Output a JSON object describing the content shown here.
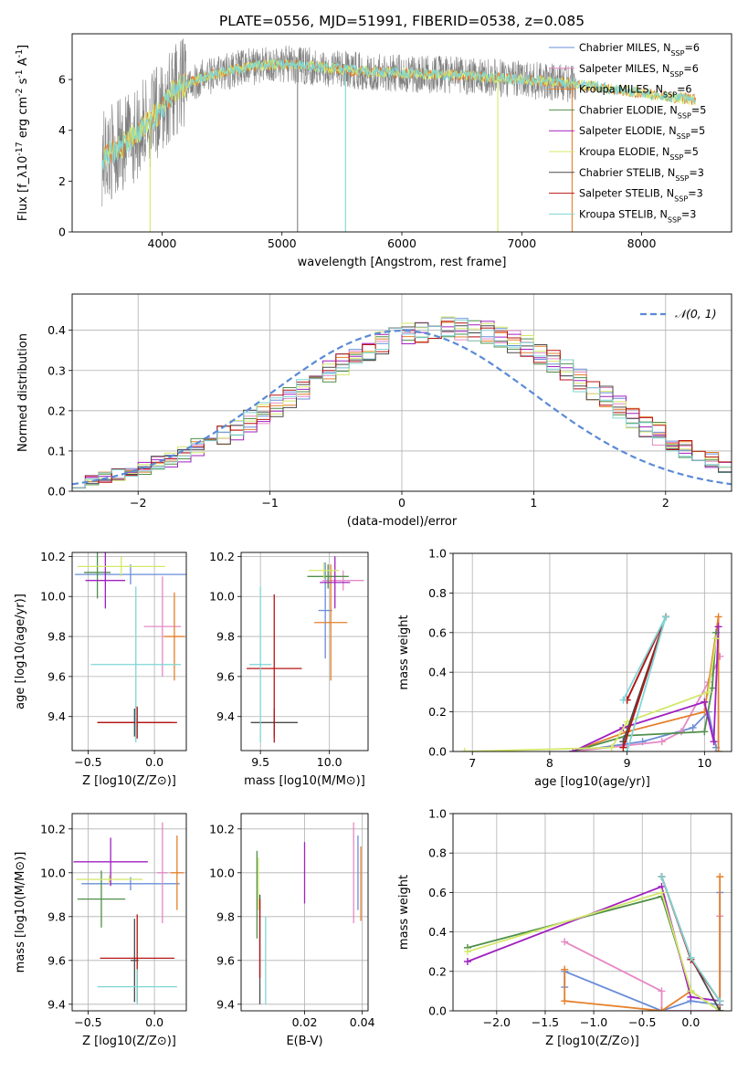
{
  "figure": {
    "title": "PLATE=0556, MJD=51991, FIBERID=0538, z=0.085",
    "models": [
      {
        "name": "Chabrier MILES, N_SSP=6",
        "color": "#6a8ed8"
      },
      {
        "name": "Salpeter MILES, N_SSP=6",
        "color": "#e48ac4"
      },
      {
        "name": "Kroupa MILES, N_SSP=6",
        "color": "#e57f2a"
      },
      {
        "name": "Chabrier ELODIE, N_SSP=5",
        "color": "#4f8f49"
      },
      {
        "name": "Salpeter ELODIE, N_SSP=5",
        "color": "#a020c0"
      },
      {
        "name": "Kroupa ELODIE, N_SSP=5",
        "color": "#d2e86a"
      },
      {
        "name": "Chabrier STELIB, N_SSP=3",
        "color": "#4a4a4a"
      },
      {
        "name": "Salpeter STELIB, N_SSP=3",
        "color": "#b81414"
      },
      {
        "name": "Kroupa STELIB, N_SSP=3",
        "color": "#7fd6d6"
      }
    ]
  },
  "chart_data": [
    {
      "id": "spectrum",
      "type": "line",
      "xlabel": "wavelength [Angstrom, rest frame]",
      "ylabel": "Flux [f_λ10^-17 erg cm^-2 s^-1 A^-1]",
      "xlim": [
        3250,
        8750
      ],
      "ylim": [
        0,
        7.8
      ],
      "xticks": [
        4000,
        5000,
        6000,
        7000,
        8000
      ],
      "yticks": [
        0,
        2,
        4,
        6
      ],
      "legend_position": "top-right",
      "data_color": "#808080",
      "data_x_range": [
        3500,
        7450
      ],
      "model_x_range": [
        3500,
        8450
      ],
      "continuum": {
        "x": [
          3500,
          3700,
          3900,
          4000,
          4100,
          4300,
          4500,
          4800,
          5000,
          5300,
          5600,
          6000,
          6500,
          7000,
          7400,
          7800,
          8100,
          8450
        ],
        "y": [
          2.9,
          3.5,
          4.4,
          4.8,
          5.6,
          6.0,
          6.3,
          6.55,
          6.6,
          6.5,
          6.35,
          6.25,
          6.15,
          6.0,
          5.85,
          5.6,
          5.4,
          5.2
        ]
      },
      "spikes": [
        {
          "x": 3900,
          "y": 0,
          "color": "#d2e86a"
        },
        {
          "x": 5130,
          "y": 0,
          "color": "#808080"
        },
        {
          "x": 5530,
          "y": 0,
          "color": "#7fd6d6"
        },
        {
          "x": 6800,
          "y": 0,
          "color": "#d2e86a"
        },
        {
          "x": 7420,
          "y": 0,
          "color": "#e57f2a"
        }
      ]
    },
    {
      "id": "residuals",
      "type": "line",
      "xlabel": "(data-model)/error",
      "ylabel": "Normed distribution",
      "xlim": [
        -2.5,
        2.5
      ],
      "ylim": [
        0,
        0.49
      ],
      "xticks": [
        -2,
        -1,
        0,
        1,
        2
      ],
      "yticks": [
        0.0,
        0.1,
        0.2,
        0.3,
        0.4
      ],
      "grid": true,
      "legend_position": "top-right",
      "reference": {
        "name": "𝒩(0, 1)",
        "color": "#5a8ad6",
        "style": "dashed"
      },
      "histogram": {
        "bin_start": -2.5,
        "bin_width": 0.1,
        "values": [
          0.021,
          0.028,
          0.035,
          0.041,
          0.049,
          0.057,
          0.068,
          0.079,
          0.092,
          0.106,
          0.122,
          0.138,
          0.156,
          0.175,
          0.194,
          0.214,
          0.235,
          0.256,
          0.276,
          0.297,
          0.316,
          0.334,
          0.351,
          0.366,
          0.38,
          0.391,
          0.399,
          0.405,
          0.406,
          0.405,
          0.401,
          0.394,
          0.384,
          0.372,
          0.357,
          0.34,
          0.32,
          0.299,
          0.277,
          0.254,
          0.231,
          0.208,
          0.185,
          0.163,
          0.143,
          0.124,
          0.106,
          0.09,
          0.076,
          0.063
        ]
      }
    },
    {
      "id": "age_vs_Z",
      "type": "scatter",
      "xlabel": "Z [log10(Z/Z⊙)]",
      "ylabel": "age [log10(age/yr)]",
      "xlim": [
        -0.62,
        0.24
      ],
      "ylim": [
        9.23,
        10.22
      ],
      "xticks": [
        -0.5,
        0.0
      ],
      "yticks": [
        9.4,
        9.6,
        9.8,
        10.0,
        10.2
      ],
      "grid": true,
      "points": [
        {
          "x": -0.18,
          "xerr": 0.42,
          "y": 10.11,
          "yerr": 0.05,
          "color": "#6a8ed8"
        },
        {
          "x": 0.06,
          "xerr": 0.14,
          "y": 9.85,
          "yerr": 0.25,
          "color": "#e48ac4"
        },
        {
          "x": 0.15,
          "xerr": 0.08,
          "y": 9.8,
          "yerr": 0.22,
          "color": "#e57f2a"
        },
        {
          "x": -0.43,
          "xerr": 0.1,
          "y": 10.12,
          "yerr": 0.13,
          "color": "#4f8f49"
        },
        {
          "x": -0.37,
          "xerr": 0.15,
          "y": 10.08,
          "yerr": 0.14,
          "color": "#a020c0"
        },
        {
          "x": -0.25,
          "xerr": 0.33,
          "y": 10.15,
          "yerr": 0.05,
          "color": "#d2e86a"
        },
        {
          "x": -0.15,
          "xerr": 0.28,
          "y": 9.37,
          "yerr": 0.07,
          "color": "#4a4a4a"
        },
        {
          "x": -0.13,
          "xerr": 0.3,
          "y": 9.37,
          "yerr": 0.08,
          "color": "#b81414"
        },
        {
          "x": -0.14,
          "xerr": 0.34,
          "y": 9.66,
          "yerr": 0.39,
          "color": "#7fd6d6"
        }
      ]
    },
    {
      "id": "age_vs_mass",
      "type": "scatter",
      "xlabel": "mass [log10(M/M⊙)]",
      "ylabel": "",
      "xlim": [
        9.36,
        10.28
      ],
      "ylim": [
        9.23,
        10.22
      ],
      "xticks": [
        9.5,
        10.0
      ],
      "yticks": [
        9.4,
        9.6,
        9.8,
        10.0,
        10.2
      ],
      "grid": true,
      "points": [
        {
          "x": 9.97,
          "xerr": 0.05,
          "y": 9.93,
          "yerr": 0.24,
          "color": "#6a8ed8"
        },
        {
          "x": 10.1,
          "xerr": 0.15,
          "y": 10.08,
          "yerr": 0.05,
          "color": "#e48ac4"
        },
        {
          "x": 10.01,
          "xerr": 0.12,
          "y": 9.87,
          "yerr": 0.29,
          "color": "#e57f2a"
        },
        {
          "x": 9.99,
          "xerr": 0.15,
          "y": 10.1,
          "yerr": 0.06,
          "color": "#4f8f49"
        },
        {
          "x": 10.04,
          "xerr": 0.11,
          "y": 10.07,
          "yerr": 0.13,
          "color": "#a020c0"
        },
        {
          "x": 9.96,
          "xerr": 0.11,
          "y": 10.13,
          "yerr": 0.04,
          "color": "#d2e86a"
        },
        {
          "x": 9.6,
          "xerr": 0.17,
          "y": 9.37,
          "yerr": 0.07,
          "color": "#4a4a4a"
        },
        {
          "x": 9.6,
          "xerr": 0.2,
          "y": 9.64,
          "yerr": 0.37,
          "color": "#b81414"
        },
        {
          "x": 9.5,
          "xerr": 0.08,
          "y": 9.66,
          "yerr": 0.39,
          "color": "#7fd6d6"
        }
      ]
    },
    {
      "id": "mass_weight_vs_age",
      "type": "line",
      "xlabel": "age [log10(age/yr)]",
      "ylabel": "mass weight",
      "xlim": [
        6.75,
        10.35
      ],
      "ylim": [
        0,
        1
      ],
      "xticks": [
        7,
        8,
        9,
        10
      ],
      "yticks": [
        0.0,
        0.2,
        0.4,
        0.6,
        0.8,
        1.0
      ],
      "grid": true,
      "series": [
        {
          "color": "#6a8ed8",
          "x": [
            8.3,
            9.2,
            9.85,
            10.05,
            10.15
          ],
          "y": [
            0.0,
            0.05,
            0.12,
            0.2,
            0.02
          ]
        },
        {
          "color": "#e48ac4",
          "x": [
            8.3,
            9.45,
            9.7,
            10.05,
            10.2
          ],
          "y": [
            0.0,
            0.05,
            0.1,
            0.35,
            0.48
          ]
        },
        {
          "color": "#e57f2a",
          "x": [
            8.3,
            9.0,
            10.0,
            10.18,
            10.18
          ],
          "y": [
            0.0,
            0.1,
            0.2,
            0.68,
            0.0
          ]
        },
        {
          "color": "#4f8f49",
          "x": [
            8.3,
            9.0,
            10.0,
            10.1,
            10.15
          ],
          "y": [
            0.0,
            0.08,
            0.1,
            0.32,
            0.6
          ]
        },
        {
          "color": "#a020c0",
          "x": [
            8.3,
            8.95,
            10.0,
            10.12,
            10.18
          ],
          "y": [
            0.0,
            0.12,
            0.25,
            0.05,
            0.63
          ]
        },
        {
          "color": "#d2e86a",
          "x": [
            6.9,
            8.8,
            9.0,
            10.05,
            10.15
          ],
          "y": [
            0.0,
            0.02,
            0.15,
            0.3,
            0.57
          ]
        },
        {
          "color": "#4a4a4a",
          "x": [
            8.95,
            9.5,
            9.0
          ],
          "y": [
            0.05,
            0.68,
            0.26
          ]
        },
        {
          "color": "#b81414",
          "x": [
            8.95,
            9.5,
            9.0
          ],
          "y": [
            0.02,
            0.68,
            0.26
          ]
        },
        {
          "color": "#7fd6d6",
          "x": [
            8.95,
            9.5,
            9.0
          ],
          "y": [
            0.26,
            0.68,
            0.0
          ]
        }
      ]
    },
    {
      "id": "mass_vs_Z",
      "type": "scatter",
      "xlabel": "Z [log10(Z/Z⊙)]",
      "ylabel": "mass [log10(M/M⊙)]",
      "xlim": [
        -0.62,
        0.24
      ],
      "ylim": [
        9.37,
        10.27
      ],
      "xticks": [
        -0.5,
        0.0
      ],
      "yticks": [
        9.4,
        9.6,
        9.8,
        10.0,
        10.2
      ],
      "grid": true,
      "points": [
        {
          "x": -0.18,
          "xerr": 0.37,
          "y": 9.95,
          "yerr": 0.03,
          "color": "#6a8ed8"
        },
        {
          "x": 0.06,
          "xerr": 0.04,
          "y": 10.0,
          "yerr": 0.23,
          "color": "#e48ac4"
        },
        {
          "x": 0.17,
          "xerr": 0.05,
          "y": 10.0,
          "yerr": 0.17,
          "color": "#e57f2a"
        },
        {
          "x": -0.4,
          "xerr": 0.18,
          "y": 9.88,
          "yerr": 0.13,
          "color": "#4f8f49"
        },
        {
          "x": -0.33,
          "xerr": 0.28,
          "y": 10.05,
          "yerr": 0.11,
          "color": "#a020c0"
        },
        {
          "x": -0.34,
          "xerr": 0.25,
          "y": 9.97,
          "yerr": 0.02,
          "color": "#d2e86a"
        },
        {
          "x": -0.15,
          "xerr": 0.03,
          "y": 9.6,
          "yerr": 0.19,
          "color": "#4a4a4a"
        },
        {
          "x": -0.13,
          "xerr": 0.28,
          "y": 9.61,
          "yerr": 0.2,
          "color": "#b81414"
        },
        {
          "x": -0.13,
          "xerr": 0.3,
          "y": 9.48,
          "yerr": 0.08,
          "color": "#7fd6d6"
        }
      ]
    },
    {
      "id": "mass_vs_ebv",
      "type": "scatter",
      "xlabel": "E(B-V)",
      "ylabel": "",
      "xlim": [
        -0.002,
        0.042
      ],
      "ylim": [
        9.37,
        10.27
      ],
      "xticks": [
        0.02,
        0.04
      ],
      "yticks": [
        9.4,
        9.6,
        9.8,
        10.0,
        10.2
      ],
      "grid": true,
      "points": [
        {
          "x": 0.0385,
          "xerr": 0,
          "y": 10.0,
          "yerr": 0.17,
          "color": "#6a8ed8"
        },
        {
          "x": 0.037,
          "xerr": 0,
          "y": 10.0,
          "yerr": 0.23,
          "color": "#e48ac4"
        },
        {
          "x": 0.0395,
          "xerr": 0,
          "y": 9.95,
          "yerr": 0.17,
          "color": "#e57f2a"
        },
        {
          "x": 0.0035,
          "xerr": 0,
          "y": 9.9,
          "yerr": 0.2,
          "color": "#4f8f49"
        },
        {
          "x": 0.02,
          "xerr": 0,
          "y": 10.0,
          "yerr": 0.14,
          "color": "#a020c0"
        },
        {
          "x": 0.004,
          "xerr": 0,
          "y": 9.95,
          "yerr": 0.12,
          "color": "#d2e86a"
        },
        {
          "x": 0.0045,
          "xerr": 0,
          "y": 9.65,
          "yerr": 0.25,
          "color": "#4a4a4a"
        },
        {
          "x": 0.0045,
          "xerr": 0,
          "y": 9.7,
          "yerr": 0.18,
          "color": "#b81414"
        },
        {
          "x": 0.0065,
          "xerr": 0,
          "y": 9.6,
          "yerr": 0.2,
          "color": "#7fd6d6"
        }
      ]
    },
    {
      "id": "mass_weight_vs_Z",
      "type": "line",
      "xlabel": "Z [log10(Z/Z⊙)]",
      "ylabel": "mass weight",
      "xlim": [
        -2.45,
        0.42
      ],
      "ylim": [
        0,
        1
      ],
      "xticks": [
        -2.0,
        -1.5,
        -1.0,
        -0.5,
        0.0
      ],
      "yticks": [
        0.0,
        0.2,
        0.4,
        0.6,
        0.8,
        1.0
      ],
      "grid": true,
      "series": [
        {
          "color": "#6a8ed8",
          "x": [
            -1.3,
            -1.3,
            -0.3,
            0.0,
            0.3,
            0.3
          ],
          "y": [
            0.12,
            0.2,
            0.0,
            0.05,
            0.03,
            0.6
          ]
        },
        {
          "color": "#e48ac4",
          "x": [
            -1.3,
            -0.3,
            -0.3,
            0.3,
            0.3
          ],
          "y": [
            0.35,
            0.1,
            0.0,
            0.0,
            0.48
          ]
        },
        {
          "color": "#e57f2a",
          "x": [
            -1.3,
            -1.3,
            -0.3,
            0.0,
            0.3,
            0.3
          ],
          "y": [
            0.21,
            0.05,
            0.0,
            0.1,
            0.0,
            0.68
          ]
        },
        {
          "color": "#4f8f49",
          "x": [
            -2.3,
            -0.3,
            0.0,
            0.3
          ],
          "y": [
            0.32,
            0.58,
            0.1,
            0.0
          ]
        },
        {
          "color": "#a020c0",
          "x": [
            -2.3,
            -0.3,
            0.0,
            0.3
          ],
          "y": [
            0.25,
            0.63,
            0.07,
            0.05
          ]
        },
        {
          "color": "#d2e86a",
          "x": [
            -2.3,
            -0.3,
            0.0,
            0.3
          ],
          "y": [
            0.3,
            0.6,
            0.1,
            0.0
          ]
        },
        {
          "color": "#4a4a4a",
          "x": [
            -0.3,
            0.0,
            0.3
          ],
          "y": [
            0.68,
            0.27,
            0.0
          ]
        },
        {
          "color": "#b81414",
          "x": [
            -0.3,
            0.0,
            0.3
          ],
          "y": [
            0.68,
            0.26,
            0.05
          ]
        },
        {
          "color": "#7fd6d6",
          "x": [
            -0.3,
            0.0,
            0.3
          ],
          "y": [
            0.68,
            0.27,
            0.05
          ]
        }
      ]
    }
  ]
}
